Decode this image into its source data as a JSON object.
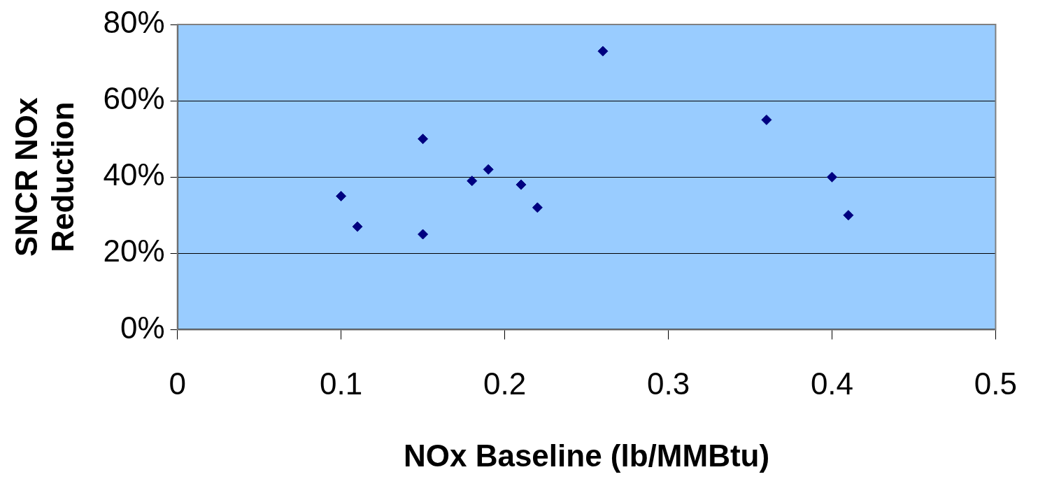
{
  "chart_data": {
    "type": "scatter",
    "xlabel": "NOx Baseline (lb/MMBtu)",
    "ylabel": "SNCR NOx\nReduction",
    "series": [
      {
        "color": "#000080",
        "x": [
          0.1,
          0.11,
          0.15,
          0.15,
          0.18,
          0.19,
          0.21,
          0.22,
          0.26,
          0.36,
          0.4,
          0.41
        ],
        "values": [
          35,
          27,
          50,
          25,
          39,
          42,
          38,
          32,
          73,
          55,
          40,
          30
        ]
      }
    ],
    "xlim": [
      0,
      0.5
    ],
    "xticks": [
      0,
      0.1,
      0.2,
      0.3,
      0.4,
      0.5
    ],
    "ylim": [
      0,
      80
    ],
    "yticks": [
      {
        "value": 0,
        "label": "0%"
      },
      {
        "value": 20,
        "label": "20%"
      },
      {
        "value": 40,
        "label": "40%"
      },
      {
        "value": 60,
        "label": "60%"
      },
      {
        "value": 80,
        "label": "80%"
      }
    ],
    "grid": "y",
    "legend": false,
    "marker": "diamond"
  }
}
